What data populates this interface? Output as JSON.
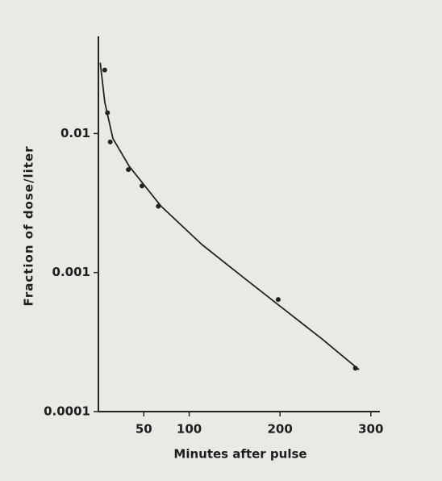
{
  "chart_data": {
    "type": "scatter",
    "xlabel": "Minutes after pulse",
    "ylabel": "Fraction of dose/liter",
    "xlim": [
      0,
      310
    ],
    "xticks": [
      50,
      100,
      200,
      300
    ],
    "ylim": [
      0.0001,
      0.05
    ],
    "yticks": [
      0.01,
      0.001,
      0.0001
    ],
    "log_y": true,
    "color": "#222222",
    "series": [
      {
        "x": [
          7,
          10,
          13,
          33,
          48,
          66,
          198,
          283
        ],
        "values": [
          0.0286,
          0.0141,
          0.0087,
          0.0055,
          0.0042,
          0.003,
          0.00064,
          0.000205
        ]
      },
      {
        "x": [
          2,
          7,
          16,
          34,
          69,
          114,
          158,
          202,
          247,
          287
        ],
        "values": [
          0.0323,
          0.0168,
          0.0092,
          0.0058,
          0.003,
          0.00159,
          0.00094,
          0.00056,
          0.00033,
          0.0002
        ]
      }
    ]
  }
}
